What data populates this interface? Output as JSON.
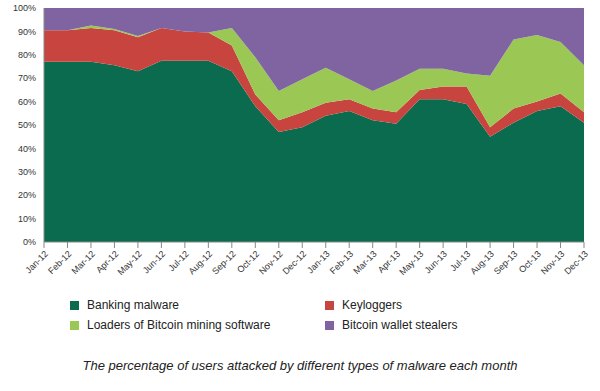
{
  "chart_data": {
    "type": "area",
    "stacked": true,
    "grid": false,
    "caption": "The percentage of users attacked by different types of malware each month",
    "categories": [
      "Jan-12",
      "Feb-12",
      "Mar-12",
      "Apr-12",
      "May-12",
      "Jun-12",
      "Jul-12",
      "Aug-12",
      "Sep-12",
      "Oct-12",
      "Nov-12",
      "Dec-12",
      "Jan-13",
      "Feb-13",
      "Mar-13",
      "Apr-13",
      "May-13",
      "Jun-13",
      "Jul-13",
      "Aug-13",
      "Sep-13",
      "Oct-13",
      "Nov-13",
      "Dec-13"
    ],
    "series": [
      {
        "name": "Banking malware",
        "color": "#0b6b4f",
        "values": [
          77,
          77,
          77,
          75.5,
          73,
          77.5,
          77.5,
          77.5,
          73,
          58,
          47,
          49,
          54,
          56,
          52,
          50.5,
          61,
          61,
          59,
          45,
          51,
          56,
          58,
          51
        ]
      },
      {
        "name": "Keyloggers",
        "color": "#c8443e",
        "values": [
          13.5,
          13.5,
          14.5,
          15,
          14.5,
          14,
          12.5,
          12,
          11,
          5,
          5,
          6.5,
          5.5,
          5,
          5,
          5,
          4,
          5.5,
          7.5,
          4,
          6,
          4,
          5.5,
          4.5
        ]
      },
      {
        "name": "Loaders of Bitcoin mining software",
        "color": "#9bc755",
        "values": [
          0,
          0,
          1,
          0.5,
          0.5,
          0,
          0,
          0,
          7.5,
          16,
          12.5,
          14,
          15,
          8.5,
          7.5,
          13.5,
          9,
          7.5,
          5.5,
          22,
          29.5,
          28.5,
          22,
          20
        ]
      },
      {
        "name": "Bitcoin wallet stealers",
        "color": "#8064a2",
        "values": [
          9.5,
          9.5,
          7.5,
          9,
          12,
          8.5,
          10,
          10.5,
          8.5,
          21,
          35.5,
          30.5,
          25.5,
          30.5,
          35.5,
          31,
          26,
          26,
          28,
          29,
          13.5,
          11.5,
          14.5,
          24.5
        ]
      }
    ],
    "ylim": [
      0,
      100
    ],
    "yticks": [
      {
        "value": 0,
        "label": "0%"
      },
      {
        "value": 10,
        "label": "10%"
      },
      {
        "value": 20,
        "label": "20%"
      },
      {
        "value": 30,
        "label": "30%"
      },
      {
        "value": 40,
        "label": "40%"
      },
      {
        "value": 50,
        "label": "50%"
      },
      {
        "value": 60,
        "label": "60%"
      },
      {
        "value": 70,
        "label": "70%"
      },
      {
        "value": 80,
        "label": "80%"
      },
      {
        "value": 90,
        "label": "90%"
      },
      {
        "value": 100,
        "label": "100%"
      }
    ]
  }
}
